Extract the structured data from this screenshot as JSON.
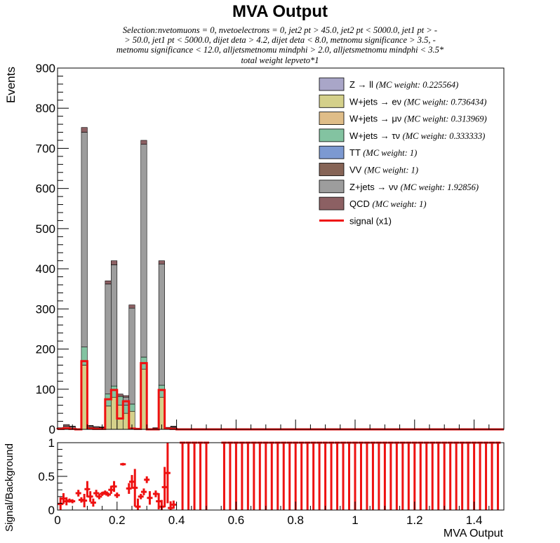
{
  "chart_data": {
    "type": "bar",
    "title": "MVA Output",
    "subtitle_lines": [
      "Selection:nvetomuons = 0, nvetoelectrons = 0, jet2 pt > 45.0, jet2 pt < 5000.0, jet1 pt > -",
      "> 50.0, jet1 pt < 5000.0, dijet deta > 4.2, dijet deta < 8.0, metnomu significance > 3.5, -",
      "metnomu significance < 12.0, alljetsmetnomu mindphi > 2.0, alljetsmetnomu mindphi < 3.5*",
      "total weight lepveto*1"
    ],
    "xlabel": "MVA Output",
    "ylabel": "Events",
    "ratio_ylabel": "Signal/Background",
    "xlim": [
      0,
      1.5
    ],
    "ylim": [
      0,
      900
    ],
    "ratio_ylim": [
      0,
      1
    ],
    "yticks": [
      "0",
      "100",
      "200",
      "300",
      "400",
      "500",
      "600",
      "700",
      "800",
      "900"
    ],
    "xticks": [
      "0",
      "0.2",
      "0.4",
      "0.6",
      "0.8",
      "1",
      "1.2",
      "1.4"
    ],
    "ratio_yticks": [
      "0",
      "0.5",
      "1"
    ],
    "bin_width": 0.02,
    "legend": [
      {
        "label": "Z → ll",
        "weight": "(MC weight: 0.225564)",
        "color": "#a9a6c8"
      },
      {
        "label": "W+jets → eν",
        "weight": "(MC weight: 0.736434)",
        "color": "#d4d08a"
      },
      {
        "label": "W+jets → μν",
        "weight": "(MC weight: 0.313969)",
        "color": "#dfbd88"
      },
      {
        "label": "W+jets → τν",
        "weight": "(MC weight: 0.333333)",
        "color": "#83c3a1"
      },
      {
        "label": "TT",
        "weight": "(MC weight: 1)",
        "color": "#7c99d1"
      },
      {
        "label": "VV",
        "weight": "(MC weight: 1)",
        "color": "#866456"
      },
      {
        "label": "Z+jets → νν",
        "weight": "(MC weight: 1.92856)",
        "color": "#9d9d9d"
      },
      {
        "label": "QCD",
        "weight": "(MC weight: 1)",
        "color": "#8c6063"
      },
      {
        "label": "signal (x1)",
        "weight": "",
        "color": "#ee1111",
        "line": true
      }
    ],
    "stack_bins": [
      {
        "x": 0.0,
        "ewk": 0,
        "tau": 0,
        "zvv": 3,
        "tot": 4
      },
      {
        "x": 0.02,
        "ewk": 3,
        "tau": 1,
        "zvv": 8,
        "tot": 12
      },
      {
        "x": 0.04,
        "ewk": 2,
        "tau": 1,
        "zvv": 6,
        "tot": 8
      },
      {
        "x": 0.06,
        "ewk": 0,
        "tau": 0,
        "zvv": 1,
        "tot": 2
      },
      {
        "x": 0.08,
        "ewk": 160,
        "tau": 45,
        "zvv": 740,
        "tot": 752
      },
      {
        "x": 0.1,
        "ewk": 4,
        "tau": 1,
        "zvv": 8,
        "tot": 10
      },
      {
        "x": 0.12,
        "ewk": 2,
        "tau": 1,
        "zvv": 5,
        "tot": 7
      },
      {
        "x": 0.14,
        "ewk": 3,
        "tau": 1,
        "zvv": 5,
        "tot": 6
      },
      {
        "x": 0.16,
        "ewk": 58,
        "tau": 30,
        "zvv": 362,
        "tot": 370
      },
      {
        "x": 0.18,
        "ewk": 80,
        "tau": 28,
        "zvv": 410,
        "tot": 420
      },
      {
        "x": 0.2,
        "ewk": 60,
        "tau": 22,
        "zvv": 82,
        "tot": 88
      },
      {
        "x": 0.22,
        "ewk": 40,
        "tau": 20,
        "zvv": 80,
        "tot": 84
      },
      {
        "x": 0.24,
        "ewk": 45,
        "tau": 18,
        "zvv": 302,
        "tot": 310
      },
      {
        "x": 0.26,
        "ewk": 0,
        "tau": 0,
        "zvv": 1,
        "tot": 1
      },
      {
        "x": 0.28,
        "ewk": 150,
        "tau": 30,
        "zvv": 710,
        "tot": 720
      },
      {
        "x": 0.3,
        "ewk": 0,
        "tau": 0,
        "zvv": 1,
        "tot": 1
      },
      {
        "x": 0.32,
        "ewk": 2,
        "tau": 1,
        "zvv": 3,
        "tot": 4
      },
      {
        "x": 0.34,
        "ewk": 80,
        "tau": 30,
        "zvv": 412,
        "tot": 420
      },
      {
        "x": 0.36,
        "ewk": 2,
        "tau": 1,
        "zvv": 4,
        "tot": 5
      },
      {
        "x": 0.38,
        "ewk": 3,
        "tau": 1,
        "zvv": 6,
        "tot": 8
      },
      {
        "x": 0.4,
        "ewk": 0,
        "tau": 0,
        "zvv": 1,
        "tot": 1
      },
      {
        "x": 0.44,
        "ewk": 0,
        "tau": 0,
        "zvv": 1,
        "tot": 2
      }
    ],
    "signal_bins": [
      {
        "x": 0.0,
        "y": 1
      },
      {
        "x": 0.02,
        "y": 3
      },
      {
        "x": 0.04,
        "y": 1
      },
      {
        "x": 0.06,
        "y": 0
      },
      {
        "x": 0.08,
        "y": 170
      },
      {
        "x": 0.1,
        "y": 2
      },
      {
        "x": 0.12,
        "y": 1
      },
      {
        "x": 0.14,
        "y": 1
      },
      {
        "x": 0.16,
        "y": 75
      },
      {
        "x": 0.18,
        "y": 98
      },
      {
        "x": 0.2,
        "y": 27
      },
      {
        "x": 0.22,
        "y": 70
      },
      {
        "x": 0.24,
        "y": 2
      },
      {
        "x": 0.26,
        "y": 1
      },
      {
        "x": 0.28,
        "y": 165
      },
      {
        "x": 0.3,
        "y": 0
      },
      {
        "x": 0.32,
        "y": 0
      },
      {
        "x": 0.34,
        "y": 98
      },
      {
        "x": 0.36,
        "y": 2
      },
      {
        "x": 0.38,
        "y": 1
      }
    ],
    "ratio_points": [
      {
        "x": 0.01,
        "y": 0.09,
        "err": 0.1
      },
      {
        "x": 0.02,
        "y": 0.17,
        "err": 0.08
      },
      {
        "x": 0.03,
        "y": 0.13,
        "err": 0.06
      },
      {
        "x": 0.04,
        "y": 0.14,
        "err": 0.03
      },
      {
        "x": 0.05,
        "y": 0.13,
        "err": 0.03
      },
      {
        "x": 0.07,
        "y": 0.25,
        "err": 0.05
      },
      {
        "x": 0.08,
        "y": 0.15,
        "err": 0.04
      },
      {
        "x": 0.09,
        "y": 0.14,
        "err": 0.1
      },
      {
        "x": 0.1,
        "y": 0.31,
        "err": 0.12
      },
      {
        "x": 0.11,
        "y": 0.2,
        "err": 0.08
      },
      {
        "x": 0.12,
        "y": 0.11,
        "err": 0.06
      },
      {
        "x": 0.13,
        "y": 0.25,
        "err": 0.05
      },
      {
        "x": 0.14,
        "y": 0.2,
        "err": 0.04
      },
      {
        "x": 0.15,
        "y": 0.24,
        "err": 0.03
      },
      {
        "x": 0.16,
        "y": 0.26,
        "err": 0.03
      },
      {
        "x": 0.17,
        "y": 0.23,
        "err": 0.03
      },
      {
        "x": 0.18,
        "y": 0.3,
        "err": 0.06
      },
      {
        "x": 0.19,
        "y": 0.35,
        "err": 0.08
      },
      {
        "x": 0.2,
        "y": 0.22,
        "err": 0.04
      },
      {
        "x": 0.22,
        "y": 0.68,
        "err": 0.02
      },
      {
        "x": 0.24,
        "y": 0.32,
        "err": 0.08
      },
      {
        "x": 0.25,
        "y": 0.42,
        "err": 0.1
      },
      {
        "x": 0.26,
        "y": 0.33,
        "err": 0.28
      },
      {
        "x": 0.27,
        "y": 0.05,
        "err": 0.12
      },
      {
        "x": 0.28,
        "y": 0.2,
        "err": 0.04
      },
      {
        "x": 0.29,
        "y": 0.27,
        "err": 0.05
      },
      {
        "x": 0.3,
        "y": 0.45,
        "err": 0.05
      },
      {
        "x": 0.31,
        "y": 0.18,
        "err": 0.1
      },
      {
        "x": 0.33,
        "y": 0.24,
        "err": 0.05
      },
      {
        "x": 0.34,
        "y": 0.13,
        "err": 0.12
      },
      {
        "x": 0.35,
        "y": 0.05,
        "err": 0.1
      },
      {
        "x": 0.36,
        "y": 0.34,
        "err": 0.3
      },
      {
        "x": 0.37,
        "y": 0.55,
        "err": 0.45
      },
      {
        "x": 0.38,
        "y": 0.03,
        "err": 0.1
      },
      {
        "x": 0.39,
        "y": 0.08,
        "err": 0.06
      }
    ],
    "ratio_full_bins_start": 0.42,
    "ratio_full_bins_end": 1.48,
    "ratio_full_bins_gap": [
      0.5,
      0.56
    ]
  }
}
